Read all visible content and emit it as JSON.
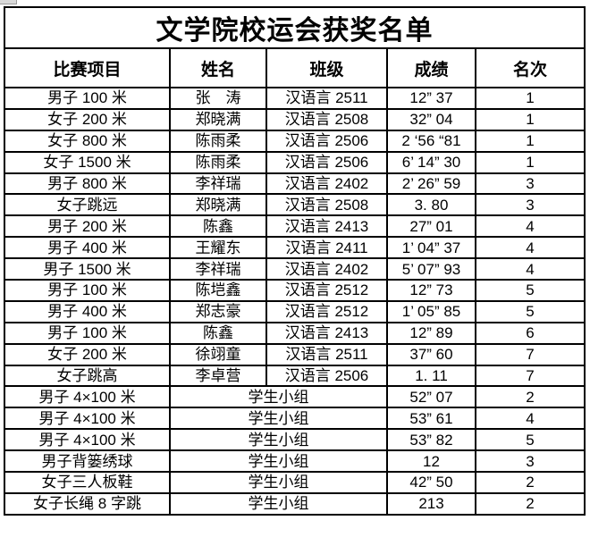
{
  "page": {
    "background": "#ffffff",
    "border_color": "#000000",
    "text_color": "#000000"
  },
  "table": {
    "title": "文学院校运会获奖名单",
    "headers": [
      "比赛项目",
      "姓名",
      "班级",
      "成绩",
      "名次"
    ],
    "rows": [
      {
        "event": "男子 100 米",
        "name": "张　涛",
        "class": "汉语言 2511",
        "result": "12” 37",
        "rank": "1",
        "merged": false
      },
      {
        "event": "女子 200 米",
        "name": "郑晓满",
        "class": "汉语言 2508",
        "result": "32” 04",
        "rank": "1",
        "merged": false
      },
      {
        "event": "女子 800 米",
        "name": "陈雨柔",
        "class": "汉语言 2506",
        "result": "2 ‘56 “81",
        "rank": "1",
        "merged": false
      },
      {
        "event": "女子 1500 米",
        "name": "陈雨柔",
        "class": "汉语言 2506",
        "result": "6’ 14” 30",
        "rank": "1",
        "merged": false
      },
      {
        "event": "男子 800 米",
        "name": "李祥瑞",
        "class": "汉语言 2402",
        "result": "2’ 26” 59",
        "rank": "3",
        "merged": false
      },
      {
        "event": "女子跳远",
        "name": "郑晓满",
        "class": "汉语言 2508",
        "result": "3. 80",
        "rank": "3",
        "merged": false
      },
      {
        "event": "男子 200 米",
        "name": "陈鑫",
        "class": "汉语言 2413",
        "result": "27” 01",
        "rank": "4",
        "merged": false
      },
      {
        "event": "男子 400 米",
        "name": "王耀东",
        "class": "汉语言 2411",
        "result": "1’ 04” 37",
        "rank": "4",
        "merged": false
      },
      {
        "event": "男子 1500 米",
        "name": "李祥瑞",
        "class": "汉语言 2402",
        "result": "5’ 07” 93",
        "rank": "4",
        "merged": false
      },
      {
        "event": "男子 100 米",
        "name": "陈垲鑫",
        "class": "汉语言 2512",
        "result": "12” 73",
        "rank": "5",
        "merged": false
      },
      {
        "event": "男子 400 米",
        "name": "郑志豪",
        "class": "汉语言 2512",
        "result": "1’ 05” 85",
        "rank": "5",
        "merged": false
      },
      {
        "event": "男子 100 米",
        "name": "陈鑫",
        "class": "汉语言 2413",
        "result": "12” 89",
        "rank": "6",
        "merged": false
      },
      {
        "event": "女子 200 米",
        "name": "徐翊童",
        "class": "汉语言 2511",
        "result": "37” 60",
        "rank": "7",
        "merged": false
      },
      {
        "event": "女子跳高",
        "name": "李卓营",
        "class": "汉语言 2506",
        "result": "1. 11",
        "rank": "7",
        "merged": false
      },
      {
        "event": "男子 4×100 米",
        "group": "学生小组",
        "result": "52” 07",
        "rank": "2",
        "merged": true
      },
      {
        "event": "男子 4×100 米",
        "group": "学生小组",
        "result": "53” 61",
        "rank": "4",
        "merged": true
      },
      {
        "event": "男子 4×100 米",
        "group": "学生小组",
        "result": "53” 82",
        "rank": "5",
        "merged": true
      },
      {
        "event": "男子背篓绣球",
        "group": "学生小组",
        "result": "12",
        "rank": "3",
        "merged": true
      },
      {
        "event": "女子三人板鞋",
        "group": "学生小组",
        "result": "42” 50",
        "rank": "2",
        "merged": true
      },
      {
        "event": "女子长绳 8 字跳",
        "group": "学生小组",
        "result": "213",
        "rank": "2",
        "merged": true
      }
    ]
  }
}
